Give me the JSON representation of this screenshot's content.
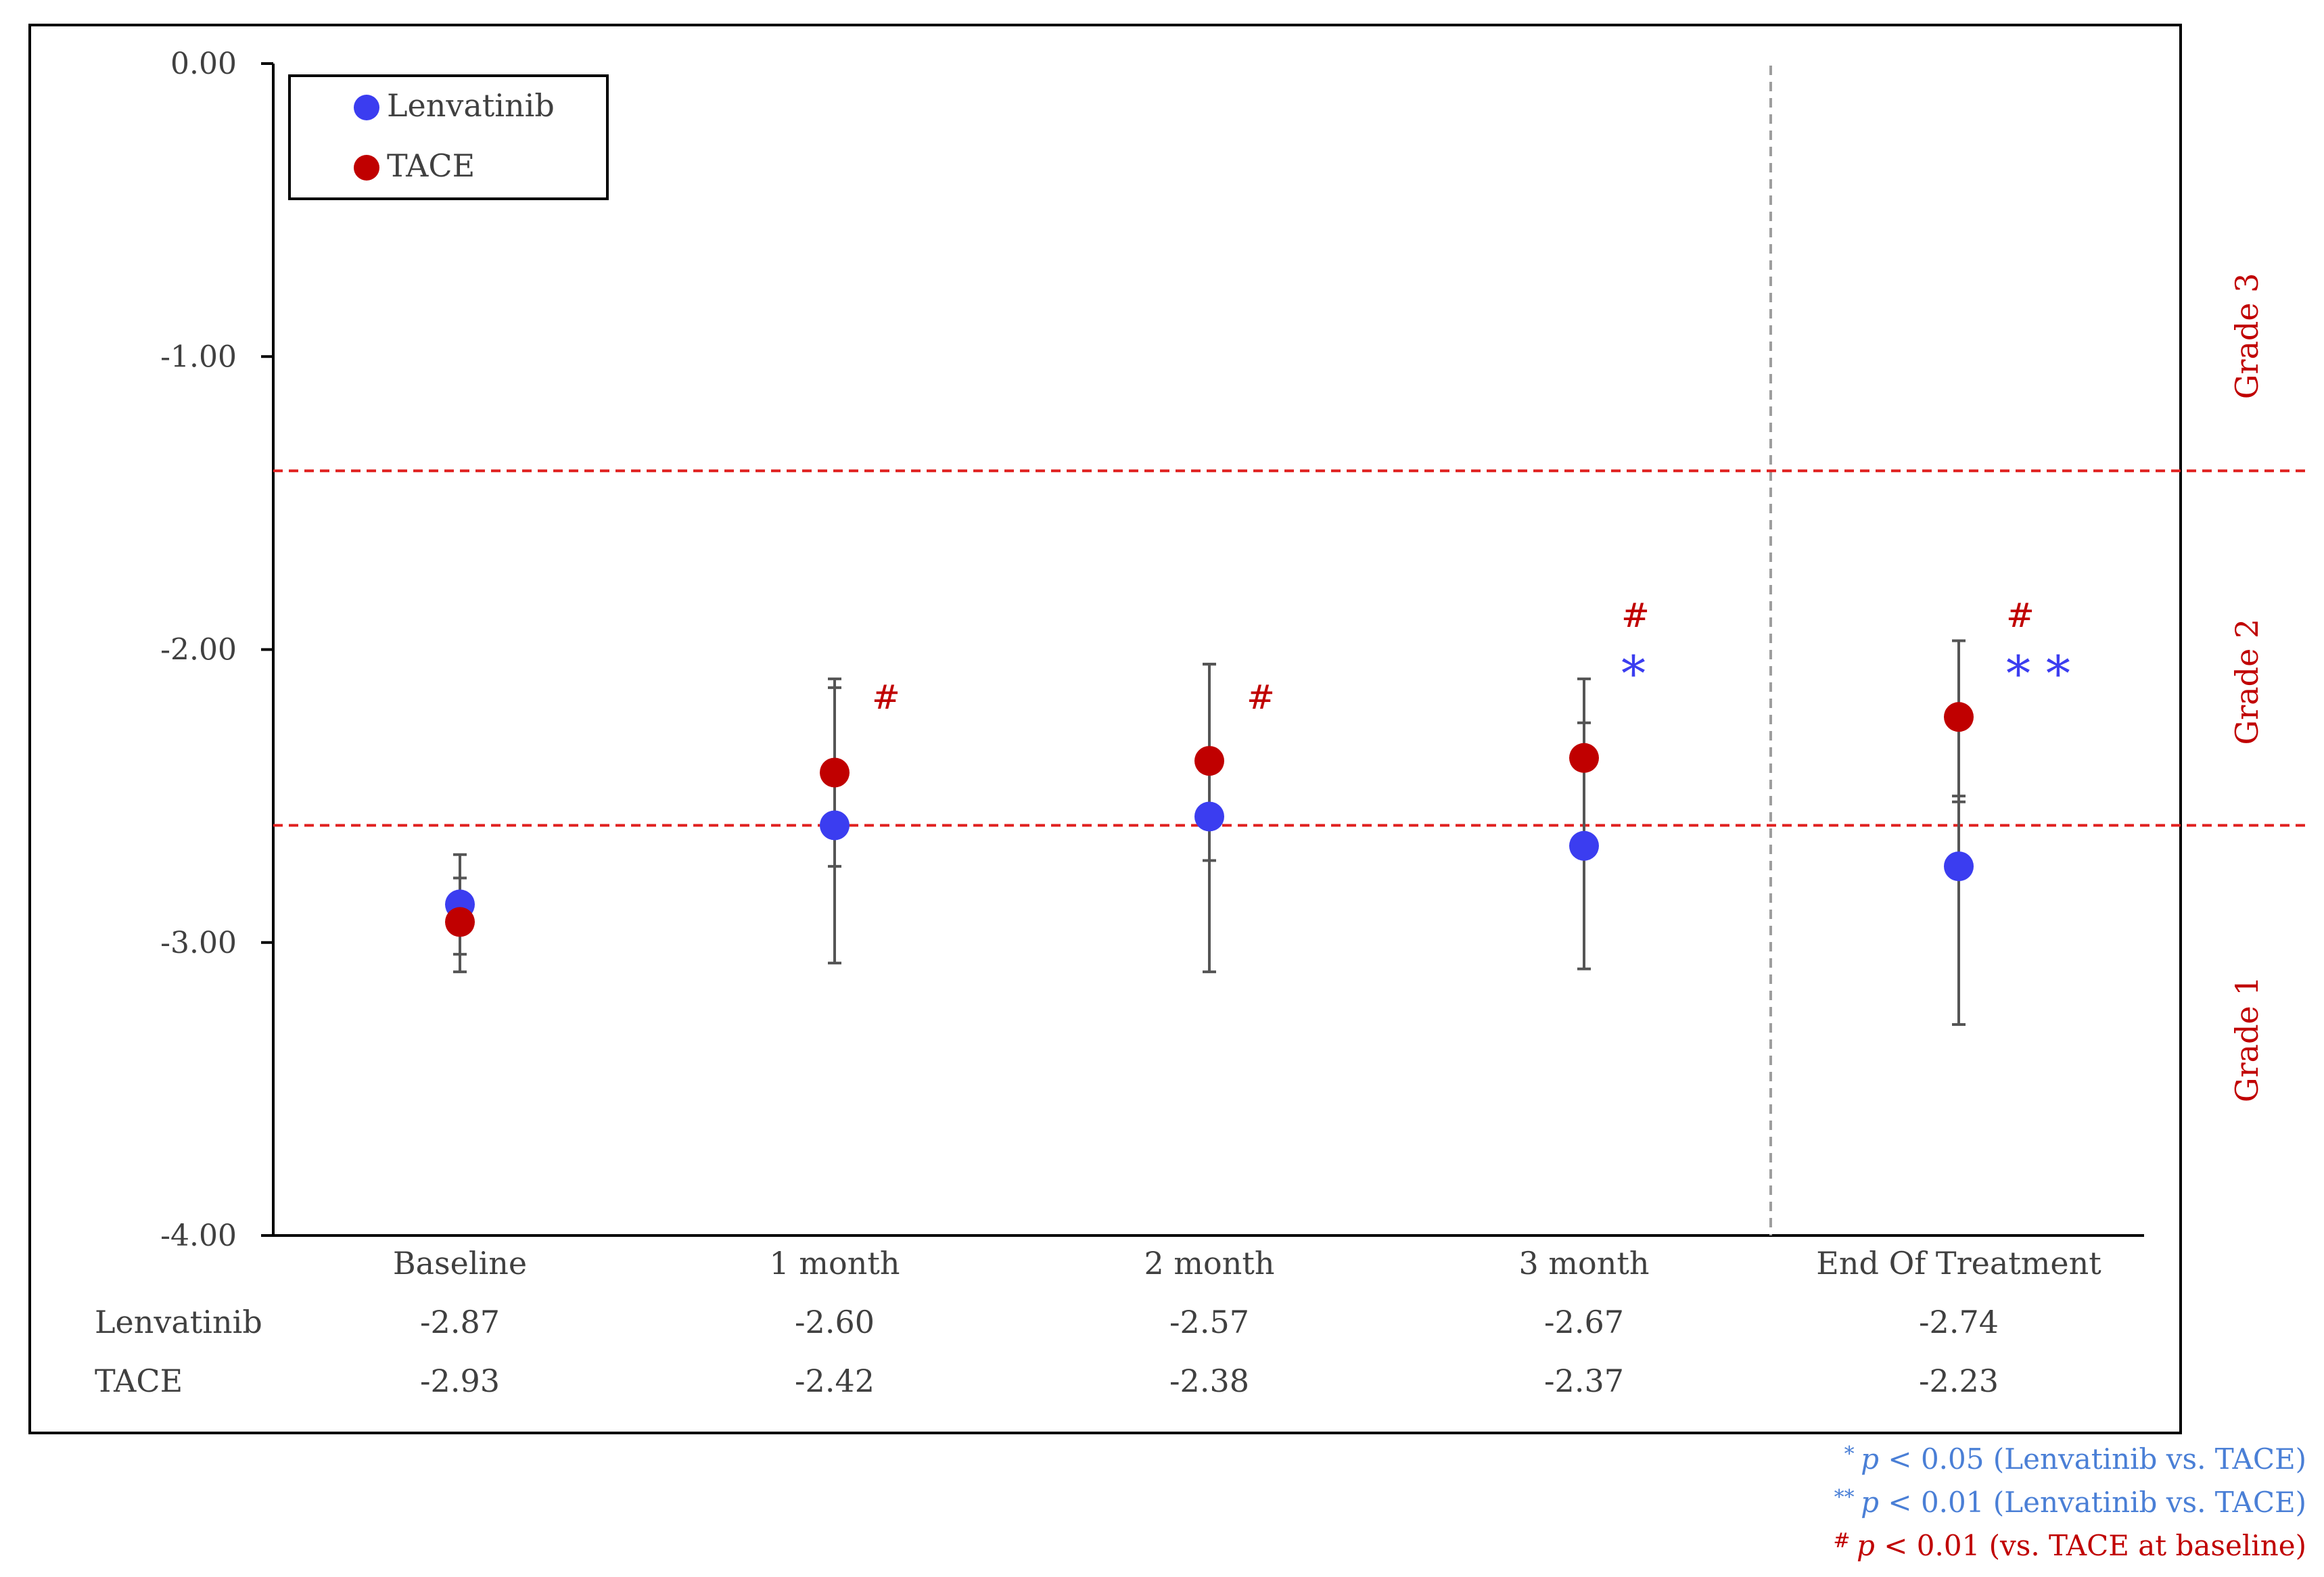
{
  "chart_data": {
    "type": "scatter",
    "categories": [
      "Baseline",
      "1 month",
      "2 month",
      "3 month",
      "End Of Treatment"
    ],
    "ylim": [
      -4.0,
      0.0
    ],
    "yticks": [
      "0.00",
      "-1.00",
      "-2.00",
      "-3.00",
      "-4.00"
    ],
    "grid": false,
    "legend_position": "top-left",
    "series": [
      {
        "name": "Lenvatinib",
        "color": "#3b3df0",
        "values": [
          -2.87,
          -2.6,
          -2.57,
          -2.67,
          -2.74
        ],
        "error_low": [
          -3.04,
          -3.07,
          -3.1,
          -3.09,
          -3.28
        ],
        "error_high": [
          -2.7,
          -2.13,
          -2.05,
          -2.25,
          -2.5
        ],
        "labels": [
          "-2.87",
          "-2.60",
          "-2.57",
          "-2.67",
          "-2.74"
        ]
      },
      {
        "name": "TACE",
        "color": "#c00000",
        "values": [
          -2.93,
          -2.42,
          -2.38,
          -2.37,
          -2.23
        ],
        "error_low": [
          -3.1,
          -2.74,
          -2.72,
          -2.68,
          -2.52
        ],
        "error_high": [
          -2.78,
          -2.1,
          -2.05,
          -2.1,
          -1.97
        ],
        "labels": [
          "-2.93",
          "-2.42",
          "-2.38",
          "-2.37",
          "-2.23"
        ]
      }
    ],
    "reference_lines": [
      -1.39,
      -2.6
    ],
    "grades": [
      {
        "label": "Grade 3",
        "y": -0.93
      },
      {
        "label": "Grade 2",
        "y": -2.11
      },
      {
        "label": "Grade 1",
        "y": -3.33
      }
    ],
    "annotations": [
      {
        "category": 1,
        "marks": [
          {
            "text": "#",
            "color": "#c00000",
            "y": -2.17
          }
        ]
      },
      {
        "category": 2,
        "marks": [
          {
            "text": "#",
            "color": "#c00000",
            "y": -2.17
          }
        ]
      },
      {
        "category": 3,
        "marks": [
          {
            "text": "#",
            "color": "#c00000",
            "y": -1.89
          },
          {
            "text": "*",
            "color": "#3b3df0",
            "y": -2.07
          }
        ]
      },
      {
        "category": 4,
        "marks": [
          {
            "text": "#",
            "color": "#c00000",
            "y": -1.89
          },
          {
            "text": "* *",
            "color": "#3b3df0",
            "y": -2.07
          }
        ]
      }
    ],
    "table_row_labels": [
      "Lenvatinib",
      "TACE"
    ]
  },
  "footnotes": [
    {
      "prefix": "*",
      "p": "p",
      "text": " < 0.05 (Lenvatinib vs. TACE)",
      "color": "#4a7fd6"
    },
    {
      "prefix": "**",
      "p": "p",
      "text": " < 0.01 (Lenvatinib vs. TACE)",
      "color": "#4a7fd6"
    },
    {
      "prefix": "#",
      "p": "p",
      "text": " < 0.01 (vs. TACE at baseline)",
      "color": "#c00000"
    }
  ]
}
